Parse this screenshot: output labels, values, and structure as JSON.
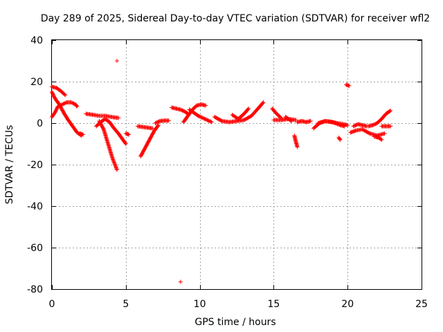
{
  "chart_data": {
    "type": "scatter",
    "title": "Day 289 of 2025, Sidereal Day-to-day VTEC variation (SDTVAR) for receiver wfl2",
    "xlabel": "GPS time / hours",
    "ylabel": "SDTVAR / TECUs",
    "xlim": [
      0,
      25
    ],
    "ylim": [
      -80,
      40
    ],
    "xticks": [
      0,
      5,
      10,
      15,
      20,
      25
    ],
    "yticks": [
      -80,
      -60,
      -40,
      -20,
      0,
      20,
      40
    ],
    "grid": true,
    "marker": "+",
    "color": "#ff0000",
    "segments": [
      {
        "x": [
          0.0,
          0.3,
          0.6,
          0.9
        ],
        "y": [
          17.5,
          17.0,
          15.5,
          13.5
        ]
      },
      {
        "x": [
          0.0,
          0.2,
          0.5,
          0.8,
          1.1,
          1.4,
          1.7,
          2.0
        ],
        "y": [
          15.0,
          12.0,
          9.0,
          5.0,
          1.5,
          -1.5,
          -4.5,
          -6.0
        ]
      },
      {
        "x": [
          0.0,
          0.2,
          0.4,
          0.7,
          1.0,
          1.3,
          1.6,
          1.7
        ],
        "y": [
          3.0,
          5.0,
          8.0,
          9.0,
          10.0,
          10.0,
          9.0,
          8.0
        ]
      },
      {
        "x": [
          1.9,
          2.1
        ],
        "y": [
          -5.0,
          -5.5
        ]
      },
      {
        "x": [
          2.3,
          2.8,
          3.2,
          3.6,
          4.0,
          4.5
        ],
        "y": [
          4.5,
          4.0,
          3.5,
          3.5,
          3.0,
          2.5
        ]
      },
      {
        "x": [
          3.0,
          3.3,
          3.6,
          3.9,
          4.2,
          4.5,
          4.8,
          5.0
        ],
        "y": [
          -1.5,
          0.5,
          2.0,
          0.5,
          -2.5,
          -5.0,
          -8.0,
          -10.0
        ]
      },
      {
        "x": [
          3.2,
          3.5,
          3.8,
          4.1,
          4.4
        ],
        "y": [
          1.0,
          -3.0,
          -10.0,
          -17.0,
          -22.5
        ]
      },
      {
        "x": [
          5.0,
          5.2
        ],
        "y": [
          -5.0,
          -5.5
        ]
      },
      {
        "x": [
          4.4
        ],
        "y": [
          30.0
        ]
      },
      {
        "x": [
          5.8,
          6.3,
          6.8
        ],
        "y": [
          -1.5,
          -2.0,
          -2.5
        ]
      },
      {
        "x": [
          6.0,
          6.3,
          6.6,
          6.9,
          7.2
        ],
        "y": [
          -16.0,
          -12.0,
          -8.0,
          -4.0,
          -1.0
        ]
      },
      {
        "x": [
          7.0,
          7.3,
          7.6,
          7.9
        ],
        "y": [
          0.0,
          1.0,
          1.2,
          1.2
        ]
      },
      {
        "x": [
          8.7
        ],
        "y": [
          -76.5
        ]
      },
      {
        "x": [
          8.1,
          8.4,
          8.7,
          9.0,
          9.2
        ],
        "y": [
          7.5,
          7.0,
          6.5,
          5.5,
          4.5
        ]
      },
      {
        "x": [
          8.9,
          9.2,
          9.5,
          9.8,
          10.1,
          10.4
        ],
        "y": [
          0.5,
          3.5,
          6.5,
          8.5,
          9.0,
          8.5
        ]
      },
      {
        "x": [
          9.3,
          9.6,
          9.9,
          10.2,
          10.5,
          10.8
        ],
        "y": [
          6.5,
          5.0,
          3.5,
          2.5,
          1.5,
          0.5
        ]
      },
      {
        "x": [
          11.0,
          11.5,
          12.0,
          12.5,
          13.0,
          13.5,
          14.0,
          14.3
        ],
        "y": [
          3.0,
          1.0,
          0.5,
          1.0,
          1.5,
          3.5,
          7.5,
          10.0
        ]
      },
      {
        "x": [
          12.2,
          12.6,
          13.0,
          13.3
        ],
        "y": [
          4.0,
          2.0,
          4.5,
          7.0
        ]
      },
      {
        "x": [
          15.0,
          15.5,
          16.0,
          16.5
        ],
        "y": [
          1.5,
          1.5,
          2.0,
          1.5
        ]
      },
      {
        "x": [
          14.9,
          15.2,
          15.5
        ],
        "y": [
          7.0,
          4.5,
          2.5
        ]
      },
      {
        "x": [
          15.8,
          16.0,
          16.2
        ],
        "y": [
          3.0,
          2.0,
          1.0
        ]
      },
      {
        "x": [
          16.4,
          16.5,
          16.6
        ],
        "y": [
          -6.0,
          -9.0,
          -11.5
        ]
      },
      {
        "x": [
          16.6,
          16.9,
          17.2,
          17.5
        ],
        "y": [
          0.5,
          1.0,
          0.5,
          1.0
        ]
      },
      {
        "x": [
          17.7,
          18.1,
          18.5,
          18.9,
          19.3,
          19.7,
          20.0
        ],
        "y": [
          -2.5,
          0.0,
          1.0,
          0.5,
          0.0,
          -0.5,
          -1.0
        ]
      },
      {
        "x": [
          18.0,
          18.5,
          19.0,
          19.5,
          19.8
        ],
        "y": [
          0.0,
          1.0,
          0.5,
          -1.0,
          -1.5
        ]
      },
      {
        "x": [
          19.4,
          19.5
        ],
        "y": [
          -7.0,
          -8.0
        ]
      },
      {
        "x": [
          19.9,
          20.1
        ],
        "y": [
          18.5,
          18.0
        ]
      },
      {
        "x": [
          20.2,
          20.6,
          21.0,
          21.5,
          22.0,
          22.5
        ],
        "y": [
          -4.5,
          -3.5,
          -3.0,
          -5.0,
          -6.0,
          -5.0
        ]
      },
      {
        "x": [
          20.4,
          20.7,
          21.0,
          21.3
        ],
        "y": [
          -1.5,
          -0.5,
          -1.0,
          -1.5
        ]
      },
      {
        "x": [
          21.4,
          21.7,
          22.0,
          22.3,
          22.6,
          22.9
        ],
        "y": [
          -1.5,
          -1.0,
          0.0,
          2.0,
          4.5,
          6.0
        ]
      },
      {
        "x": [
          21.8,
          22.1,
          22.3
        ],
        "y": [
          -6.5,
          -7.0,
          -8.0
        ]
      },
      {
        "x": [
          22.3,
          22.6,
          22.9
        ],
        "y": [
          -1.5,
          -1.5,
          -1.5
        ]
      }
    ]
  }
}
